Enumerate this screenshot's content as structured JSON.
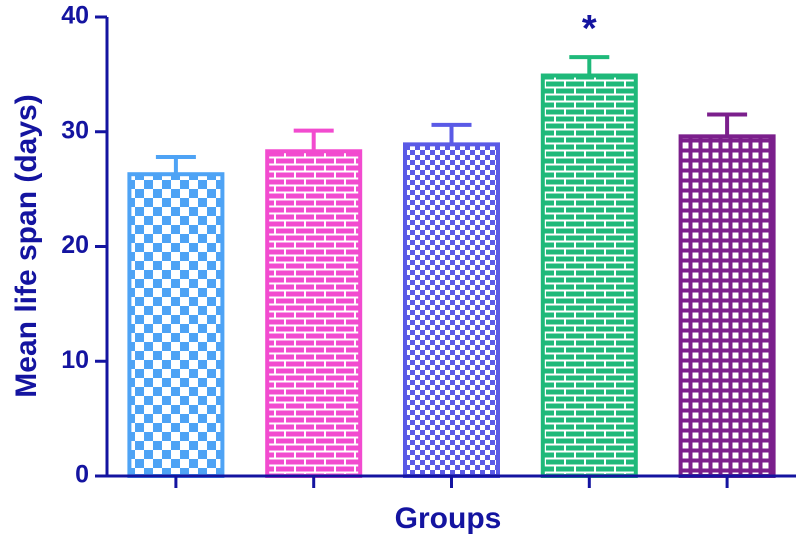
{
  "chart_data": {
    "type": "bar",
    "xlabel": "Groups",
    "ylabel": "Mean life span (days)",
    "categories": [
      null,
      null,
      null,
      null,
      null
    ],
    "values": [
      26.3,
      28.3,
      28.9,
      34.9,
      29.6
    ],
    "errors": [
      1.5,
      1.8,
      1.7,
      1.6,
      1.9
    ],
    "colors": [
      "#4ea3f5",
      "#f24bcf",
      "#5a5ae6",
      "#1fb97a",
      "#7b1f8c"
    ],
    "patterns": [
      "checker",
      "brick",
      "fine-checker",
      "brick",
      "grid"
    ],
    "annotations": [
      {
        "text": "*",
        "category": 3
      }
    ],
    "ylim": [
      0,
      40
    ],
    "yticks": [
      0,
      10,
      20,
      30,
      40
    ]
  }
}
